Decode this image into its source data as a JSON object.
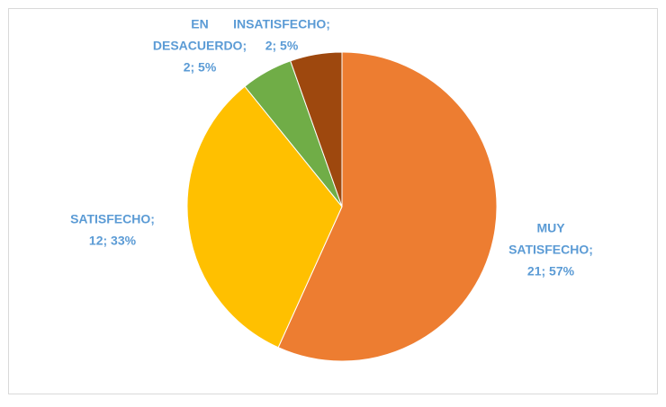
{
  "chart_data": {
    "type": "pie",
    "categories": [
      "MUY SATISFECHO",
      "SATISFECHO",
      "EN DESACUERDO",
      "INSATISFECHO"
    ],
    "values": [
      21,
      12,
      2,
      2
    ],
    "value_labels": [
      [
        "MUY",
        "SATISFECHO;",
        "21; 57%"
      ],
      [
        "SATISFECHO;",
        "12; 33%"
      ],
      [
        "EN",
        "DESACUERDO;",
        "2; 5%"
      ],
      [
        "INSATISFECHO;",
        "2; 5%"
      ]
    ],
    "colors": [
      "#ED7D31",
      "#FFC000",
      "#70AD47",
      "#9E480E"
    ]
  }
}
